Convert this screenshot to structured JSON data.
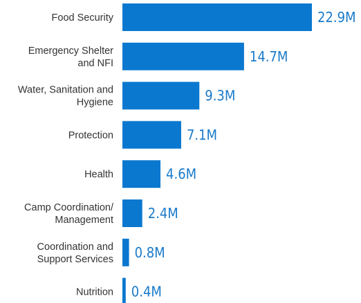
{
  "chart_data": {
    "type": "bar",
    "orientation": "horizontal",
    "categories": [
      "Food Security",
      "Emergency Shelter\nand NFI",
      "Water, Sanitation and\nHygiene",
      "Protection",
      "Health",
      "Camp Coordination/\nManagement",
      "Coordination and\nSupport Services",
      "Nutrition"
    ],
    "values": [
      22.9,
      14.7,
      9.3,
      7.1,
      4.6,
      2.4,
      0.8,
      0.4
    ],
    "value_labels": [
      "22.9M",
      "14.7M",
      "9.3M",
      "7.1M",
      "4.6M",
      "2.4M",
      "0.8M",
      "0.4M"
    ],
    "title": "",
    "xlabel": "",
    "ylabel": "",
    "xlim": [
      0,
      22.9
    ],
    "grid": false,
    "legend": "none",
    "bar_color": "#0a78cf",
    "value_label_color": "#1a7ac9",
    "category_label_color": "#333333"
  }
}
